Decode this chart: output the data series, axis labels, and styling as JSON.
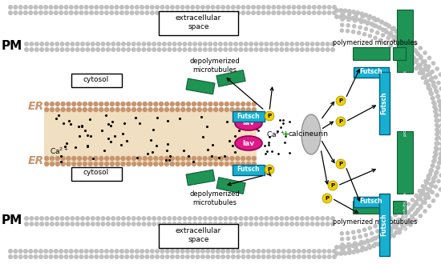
{
  "bg": "#ffffff",
  "pm_bead": "#c0c0c0",
  "er_bead": "#c8956e",
  "er_lumen": "#f0dfc0",
  "green": "#1e9455",
  "green_dk": "#145c35",
  "cyan": "#18b0d0",
  "cyan_dk": "#006080",
  "magenta": "#e01888",
  "magenta_dk": "#900050",
  "gray_calc": "#c0c0c0",
  "yellow": "#f0d000",
  "black": "#000000",
  "white": "#ffffff",
  "green_plus": "#009900",
  "label_PM": "PM",
  "label_ER": "ER",
  "label_ext": "extracellular\nspace",
  "label_cyt": "cytosol",
  "label_depoly": "depolymerized\nmicrotubules",
  "label_poly": "polymerized microtubules",
  "label_calc": "calcineurin",
  "label_Ca": "Ca",
  "label_Futsch": "Futsch",
  "label_lav": "lav",
  "label_P": "P"
}
